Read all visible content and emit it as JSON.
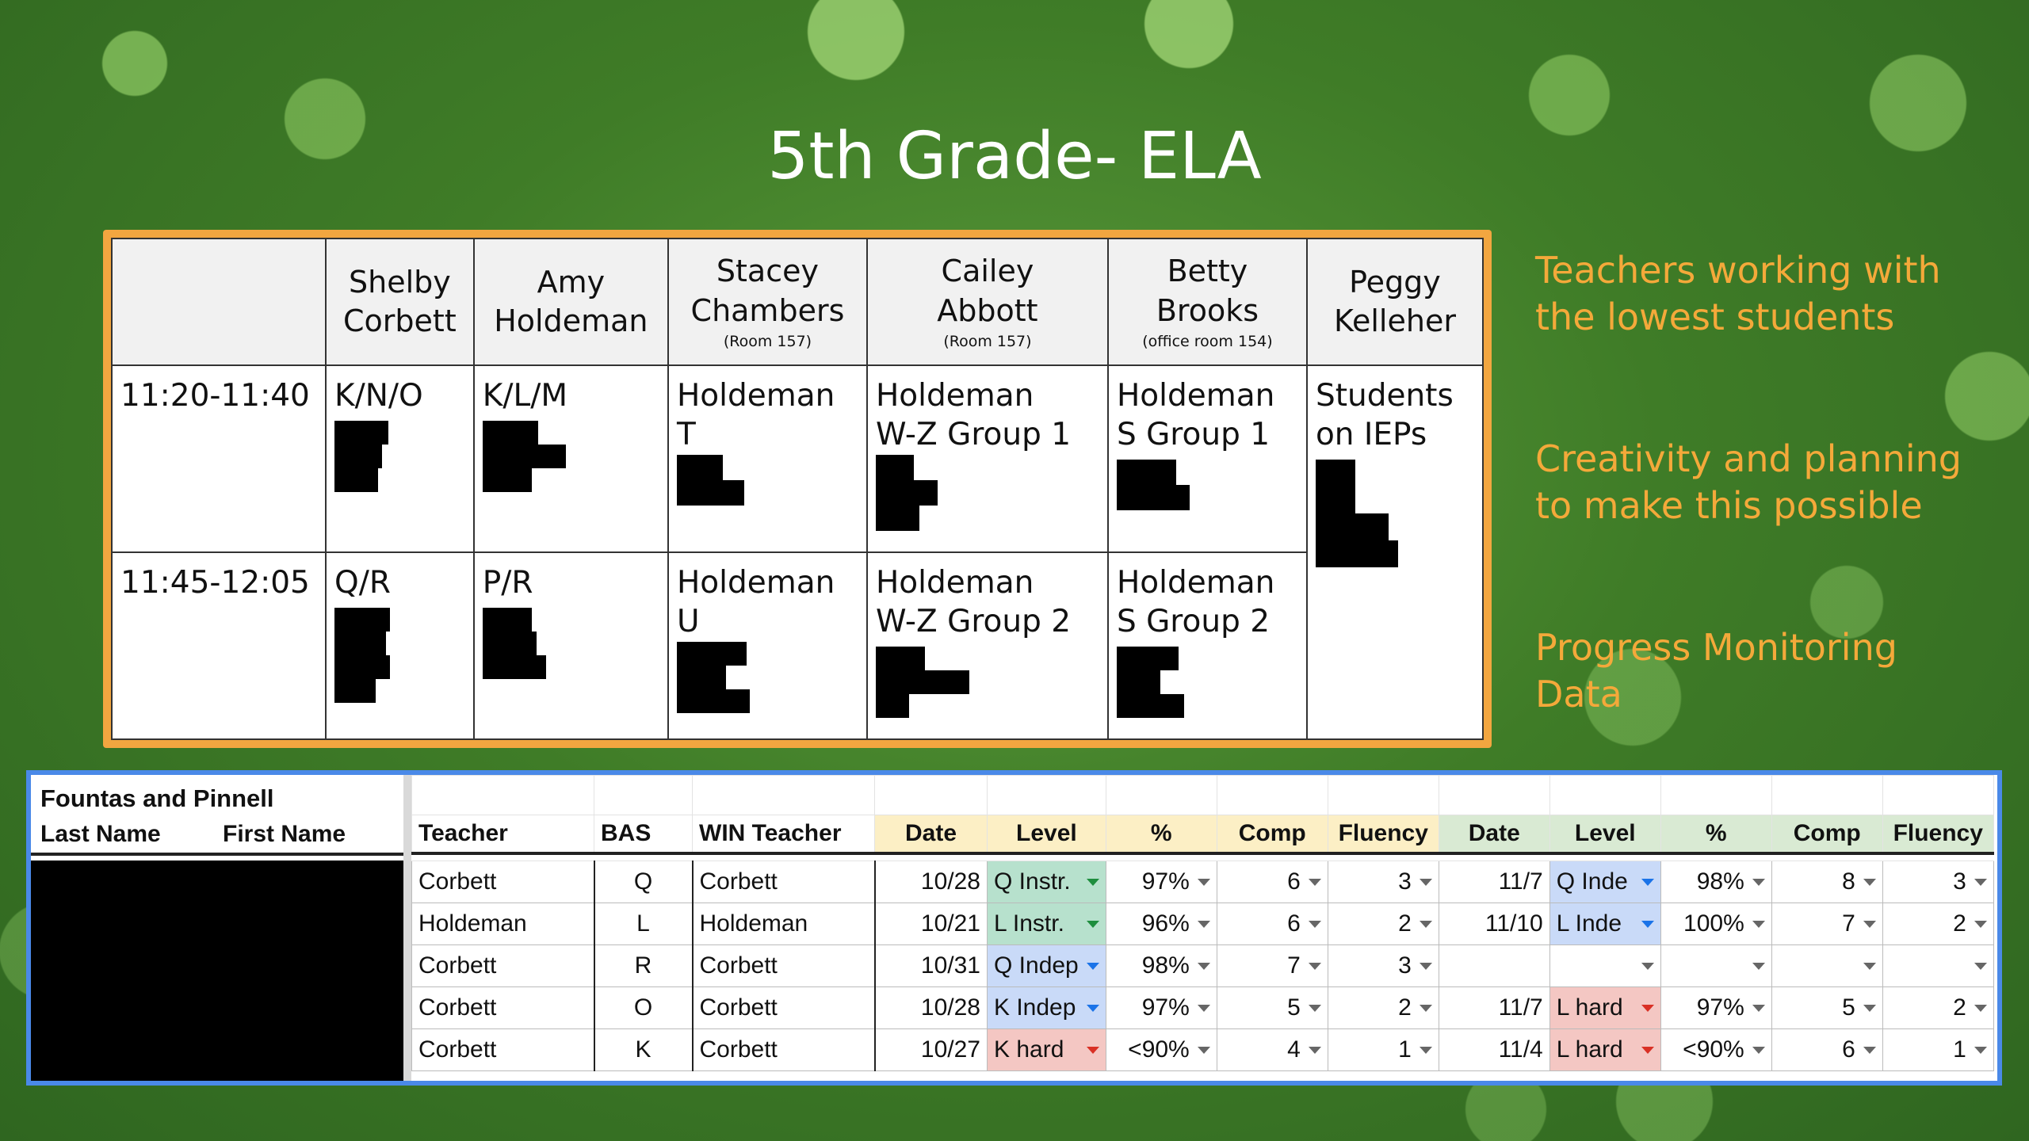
{
  "slide": {
    "title": "5th Grade- ELA",
    "side_notes": [
      "Teachers working with the lowest students",
      "Creativity and planning to make this possible",
      "Progress Monitoring Data"
    ]
  },
  "schedule": {
    "teachers": [
      {
        "line1": "Shelby",
        "line2": "Corbett",
        "room": ""
      },
      {
        "line1": "Amy",
        "line2": "Holdeman",
        "room": ""
      },
      {
        "line1": "Stacey",
        "line2": "Chambers",
        "room": "(Room 157)"
      },
      {
        "line1": "Cailey",
        "line2": "Abbott",
        "room": "(Room 157)"
      },
      {
        "line1": "Betty",
        "line2": "Brooks",
        "room": "(office room 154)"
      },
      {
        "line1": "Peggy",
        "line2": "Kelleher",
        "room": ""
      }
    ],
    "rows": [
      {
        "time": "11:20-11:40",
        "cells": [
          {
            "l1": "K/N/O",
            "l2": ""
          },
          {
            "l1": "K/L/M",
            "l2": ""
          },
          {
            "l1": "Holdeman",
            "l2": "T"
          },
          {
            "l1": "Holdeman",
            "l2": "W-Z Group 1"
          },
          {
            "l1": "Holdeman",
            "l2": "S Group 1"
          }
        ]
      },
      {
        "time": "11:45-12:05",
        "cells": [
          {
            "l1": "Q/R",
            "l2": ""
          },
          {
            "l1": "P/R",
            "l2": ""
          },
          {
            "l1": "Holdeman",
            "l2": "U"
          },
          {
            "l1": "Holdeman",
            "l2": "W-Z Group 2"
          },
          {
            "l1": "Holdeman",
            "l2": "S Group 2"
          }
        ]
      }
    ],
    "iep_cell": {
      "l1": "Students",
      "l2": "on IEPs"
    }
  },
  "sheet": {
    "title": "Fountas and Pinnell",
    "left_headers": [
      "Last Name",
      "First Name"
    ],
    "headers": [
      "Teacher",
      "BAS",
      "WIN Teacher",
      "Date",
      "Level",
      "%",
      "Comp",
      "Fluency",
      "Date",
      "Level",
      "%",
      "Comp",
      "Fluency"
    ],
    "rows": [
      [
        "Corbett",
        "Q",
        "Corbett",
        "10/28",
        "Q Instr.",
        "97%",
        "6",
        "3",
        "11/7",
        "Q Inde",
        "98%",
        "8",
        "3"
      ],
      [
        "Holdeman",
        "L",
        "Holdeman",
        "10/21",
        "L Instr.",
        "96%",
        "6",
        "2",
        "11/10",
        "L Inde",
        "100%",
        "7",
        "2"
      ],
      [
        "Corbett",
        "R",
        "Corbett",
        "10/31",
        "Q Indep",
        "98%",
        "7",
        "3",
        "",
        "",
        "",
        "",
        ""
      ],
      [
        "Corbett",
        "O",
        "Corbett",
        "10/28",
        "K Indep",
        "97%",
        "5",
        "2",
        "11/7",
        "L hard",
        "97%",
        "5",
        "2"
      ],
      [
        "Corbett",
        "K",
        "Corbett",
        "10/27",
        "K hard",
        "<90%",
        "4",
        "1",
        "11/4",
        "L hard",
        "<90%",
        "6",
        "1"
      ]
    ],
    "level_colors": {
      "instr": "#b7e1cd",
      "indep": "#c9daf8",
      "hard": "#f4c7c3",
      "date_header_1": "#fcefc5",
      "date_header_2": "#d9ead3"
    }
  }
}
